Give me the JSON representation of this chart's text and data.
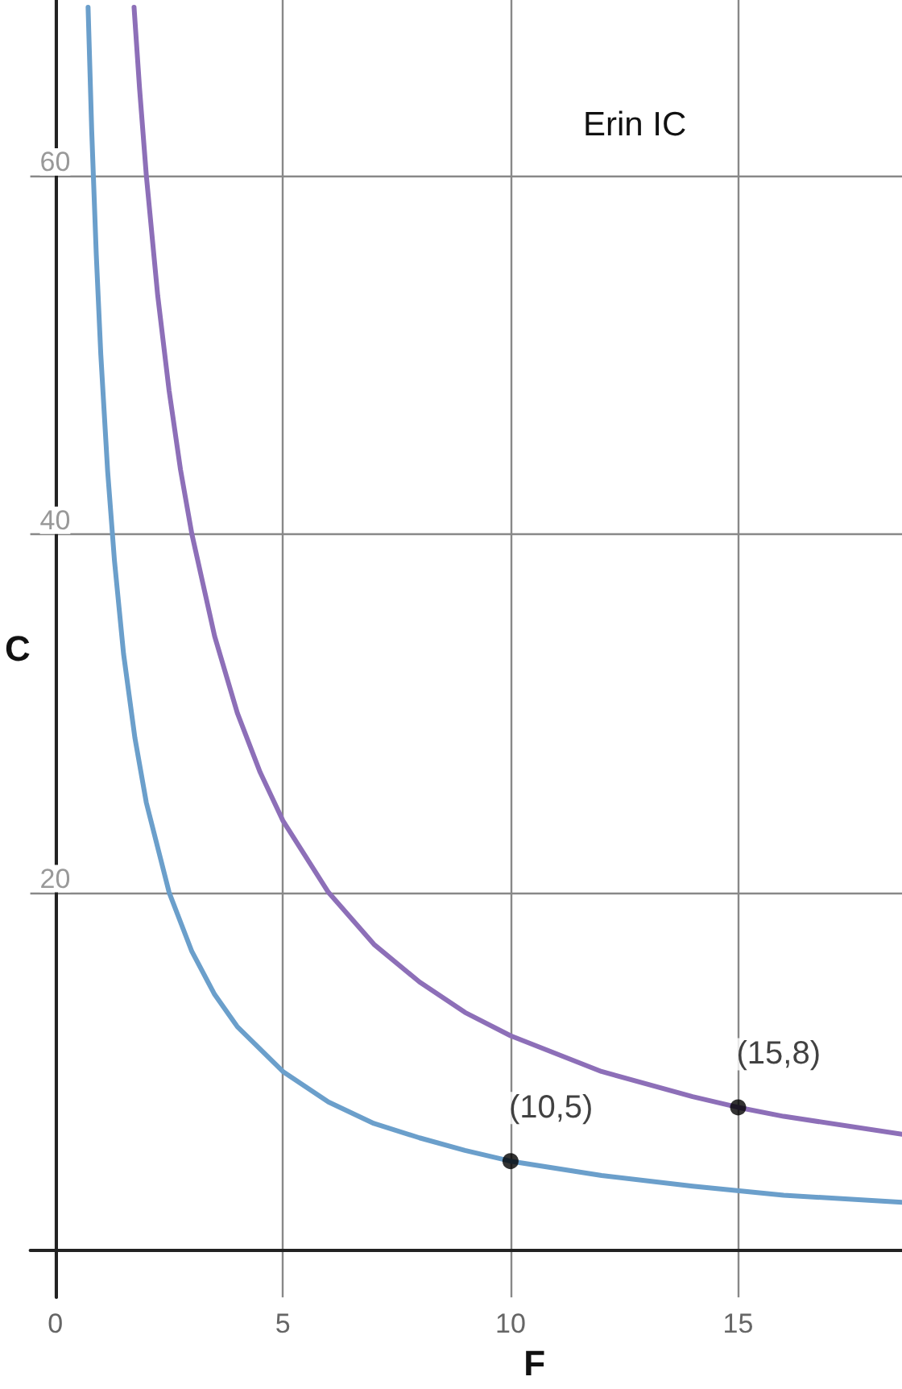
{
  "chart_data": {
    "type": "line",
    "title": "Erin IC",
    "xlabel": "F",
    "ylabel": "C",
    "xlim": [
      -0.55,
      18.6
    ],
    "ylim": [
      -2.6,
      69.8
    ],
    "xticks": [
      0,
      5,
      10,
      15
    ],
    "yticks": [
      20,
      40,
      60
    ],
    "grid": true,
    "marker": "none",
    "line_style": "solid",
    "series": [
      {
        "color": "#6b9fcb",
        "x": [
          0.72,
          0.8,
          0.9,
          1,
          1.15,
          1.3,
          1.5,
          1.75,
          2,
          2.5,
          3,
          3.5,
          4,
          5,
          6,
          7,
          8,
          9,
          10,
          12,
          14,
          16,
          18.6
        ],
        "values": [
          69.4,
          62.5,
          55.6,
          50,
          43.5,
          38.5,
          33.3,
          28.6,
          25,
          20,
          16.7,
          14.3,
          12.5,
          10,
          8.3,
          7.1,
          6.3,
          5.6,
          5,
          4.2,
          3.6,
          3.1,
          2.7
        ]
      },
      {
        "color": "#8d6fb8",
        "x": [
          1.73,
          1.85,
          2,
          2.25,
          2.5,
          2.75,
          3,
          3.5,
          4,
          4.5,
          5,
          6,
          7,
          8,
          9,
          10,
          12,
          14,
          15,
          16,
          18.6
        ],
        "values": [
          69.4,
          64.9,
          60,
          53.3,
          48,
          43.6,
          40,
          34.3,
          30,
          26.7,
          24,
          20,
          17.1,
          15,
          13.3,
          12,
          10,
          8.6,
          8,
          7.5,
          6.5
        ]
      }
    ],
    "annotations": [
      {
        "text": "(10,5)",
        "x": 10,
        "y": 5
      },
      {
        "text": "(15,8)",
        "x": 15,
        "y": 8
      }
    ]
  }
}
